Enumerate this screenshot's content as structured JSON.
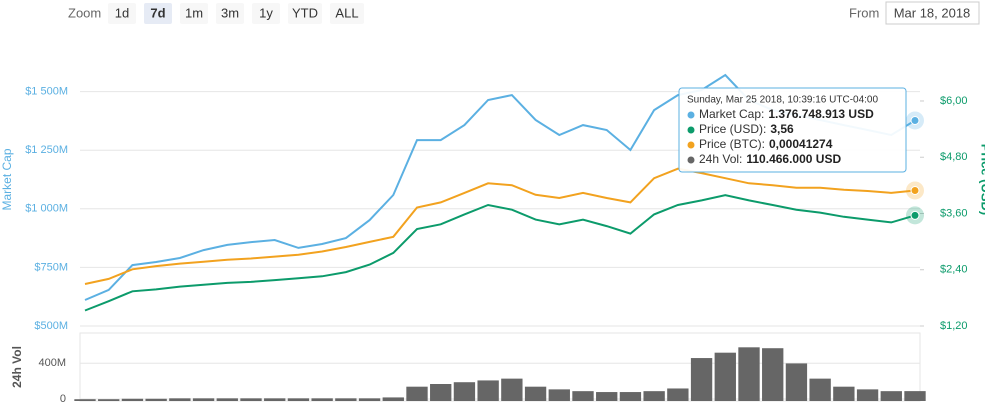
{
  "toolbar": {
    "zoom_label": "Zoom",
    "buttons": [
      "1d",
      "7d",
      "1m",
      "3m",
      "1y",
      "YTD",
      "ALL"
    ],
    "selected": 1,
    "from_label": "From",
    "from_value": "Mar 18, 2018"
  },
  "chart_data": [
    {
      "type": "line",
      "ylabel": "Market Cap",
      "y2label": "Price (USD)",
      "ylim": [
        500,
        1750
      ],
      "yticks": [
        {
          "value": 500,
          "label": "$500M"
        },
        {
          "value": 750,
          "label": "$750M"
        },
        {
          "value": 1000,
          "label": "$1 000M"
        },
        {
          "value": 1250,
          "label": "$1 250M"
        },
        {
          "value": 1500,
          "label": "$1 500M"
        }
      ],
      "y2lim": [
        1.2,
        7.45
      ],
      "y2ticks": [
        {
          "value": 1.2,
          "label": "$1,20"
        },
        {
          "value": 2.4,
          "label": "$2,40"
        },
        {
          "value": 3.6,
          "label": "$3,60"
        },
        {
          "value": 4.8,
          "label": "$4,80"
        },
        {
          "value": 6.0,
          "label": "$6,00"
        }
      ],
      "y3lim": [
        0.0002,
        0.00066
      ],
      "grid": true,
      "series": [
        {
          "name": "Market Cap",
          "color": "#5bb0e2",
          "values": [
            611,
            654,
            760,
            773,
            790,
            824,
            846,
            858,
            867,
            833,
            850,
            875,
            952,
            1059,
            1293,
            1293,
            1357,
            1464,
            1485,
            1379,
            1315,
            1357,
            1336,
            1251,
            1421,
            1485,
            1507,
            1571,
            1464,
            1421,
            1400,
            1379,
            1357,
            1336,
            1315,
            1376.75
          ]
        },
        {
          "name": "Price (USD)",
          "color": "#0c9b6b",
          "axis": "y2",
          "values": [
            1.53,
            1.73,
            1.94,
            1.98,
            2.04,
            2.08,
            2.12,
            2.14,
            2.18,
            2.22,
            2.26,
            2.35,
            2.51,
            2.76,
            3.27,
            3.37,
            3.58,
            3.78,
            3.68,
            3.47,
            3.37,
            3.47,
            3.33,
            3.17,
            3.58,
            3.78,
            3.88,
            3.99,
            3.88,
            3.78,
            3.68,
            3.62,
            3.53,
            3.47,
            3.41,
            3.56
          ]
        },
        {
          "name": "Price (BTC)",
          "color": "#f2a21f",
          "axis": "y3",
          "values": [
            0.000266,
            0.000274,
            0.000289,
            0.000294,
            0.000298,
            0.000301,
            0.000304,
            0.000306,
            0.000309,
            0.000312,
            0.000317,
            0.000324,
            0.000332,
            0.00034,
            0.000386,
            0.000394,
            0.000409,
            0.000424,
            0.000421,
            0.000406,
            0.000401,
            0.000409,
            0.000401,
            0.000394,
            0.000432,
            0.000447,
            0.00044,
            0.000432,
            0.000424,
            0.000421,
            0.000417,
            0.000417,
            0.000414,
            0.000412,
            0.000409,
            0.00041274
          ]
        }
      ],
      "tooltip": {
        "header": "Sunday, Mar 25 2018, 10:39:16 UTC-04:00",
        "items": [
          {
            "label": "Market Cap:",
            "value": "1.376.748.913 USD",
            "color": "#5bb0e2"
          },
          {
            "label": "Price (USD):",
            "value": "3,56",
            "color": "#0c9b6b"
          },
          {
            "label": "Price (BTC):",
            "value": "0,00041274",
            "color": "#f2a21f"
          },
          {
            "label": "24h Vol:",
            "value": "110.466.000 USD",
            "color": "#666666"
          }
        ]
      }
    },
    {
      "type": "bar",
      "ylabel": "24h Vol",
      "color": "#666666",
      "ylim": [
        0,
        760
      ],
      "yticks": [
        0,
        {
          "value": 400,
          "label": "400M"
        }
      ],
      "values": [
        20,
        20,
        25,
        25,
        30,
        30,
        30,
        30,
        30,
        30,
        30,
        30,
        30,
        40,
        160,
        190,
        210,
        230,
        250,
        160,
        130,
        110,
        100,
        100,
        110,
        140,
        480,
        540,
        600,
        590,
        420,
        250,
        160,
        130,
        110,
        110.466
      ]
    }
  ]
}
